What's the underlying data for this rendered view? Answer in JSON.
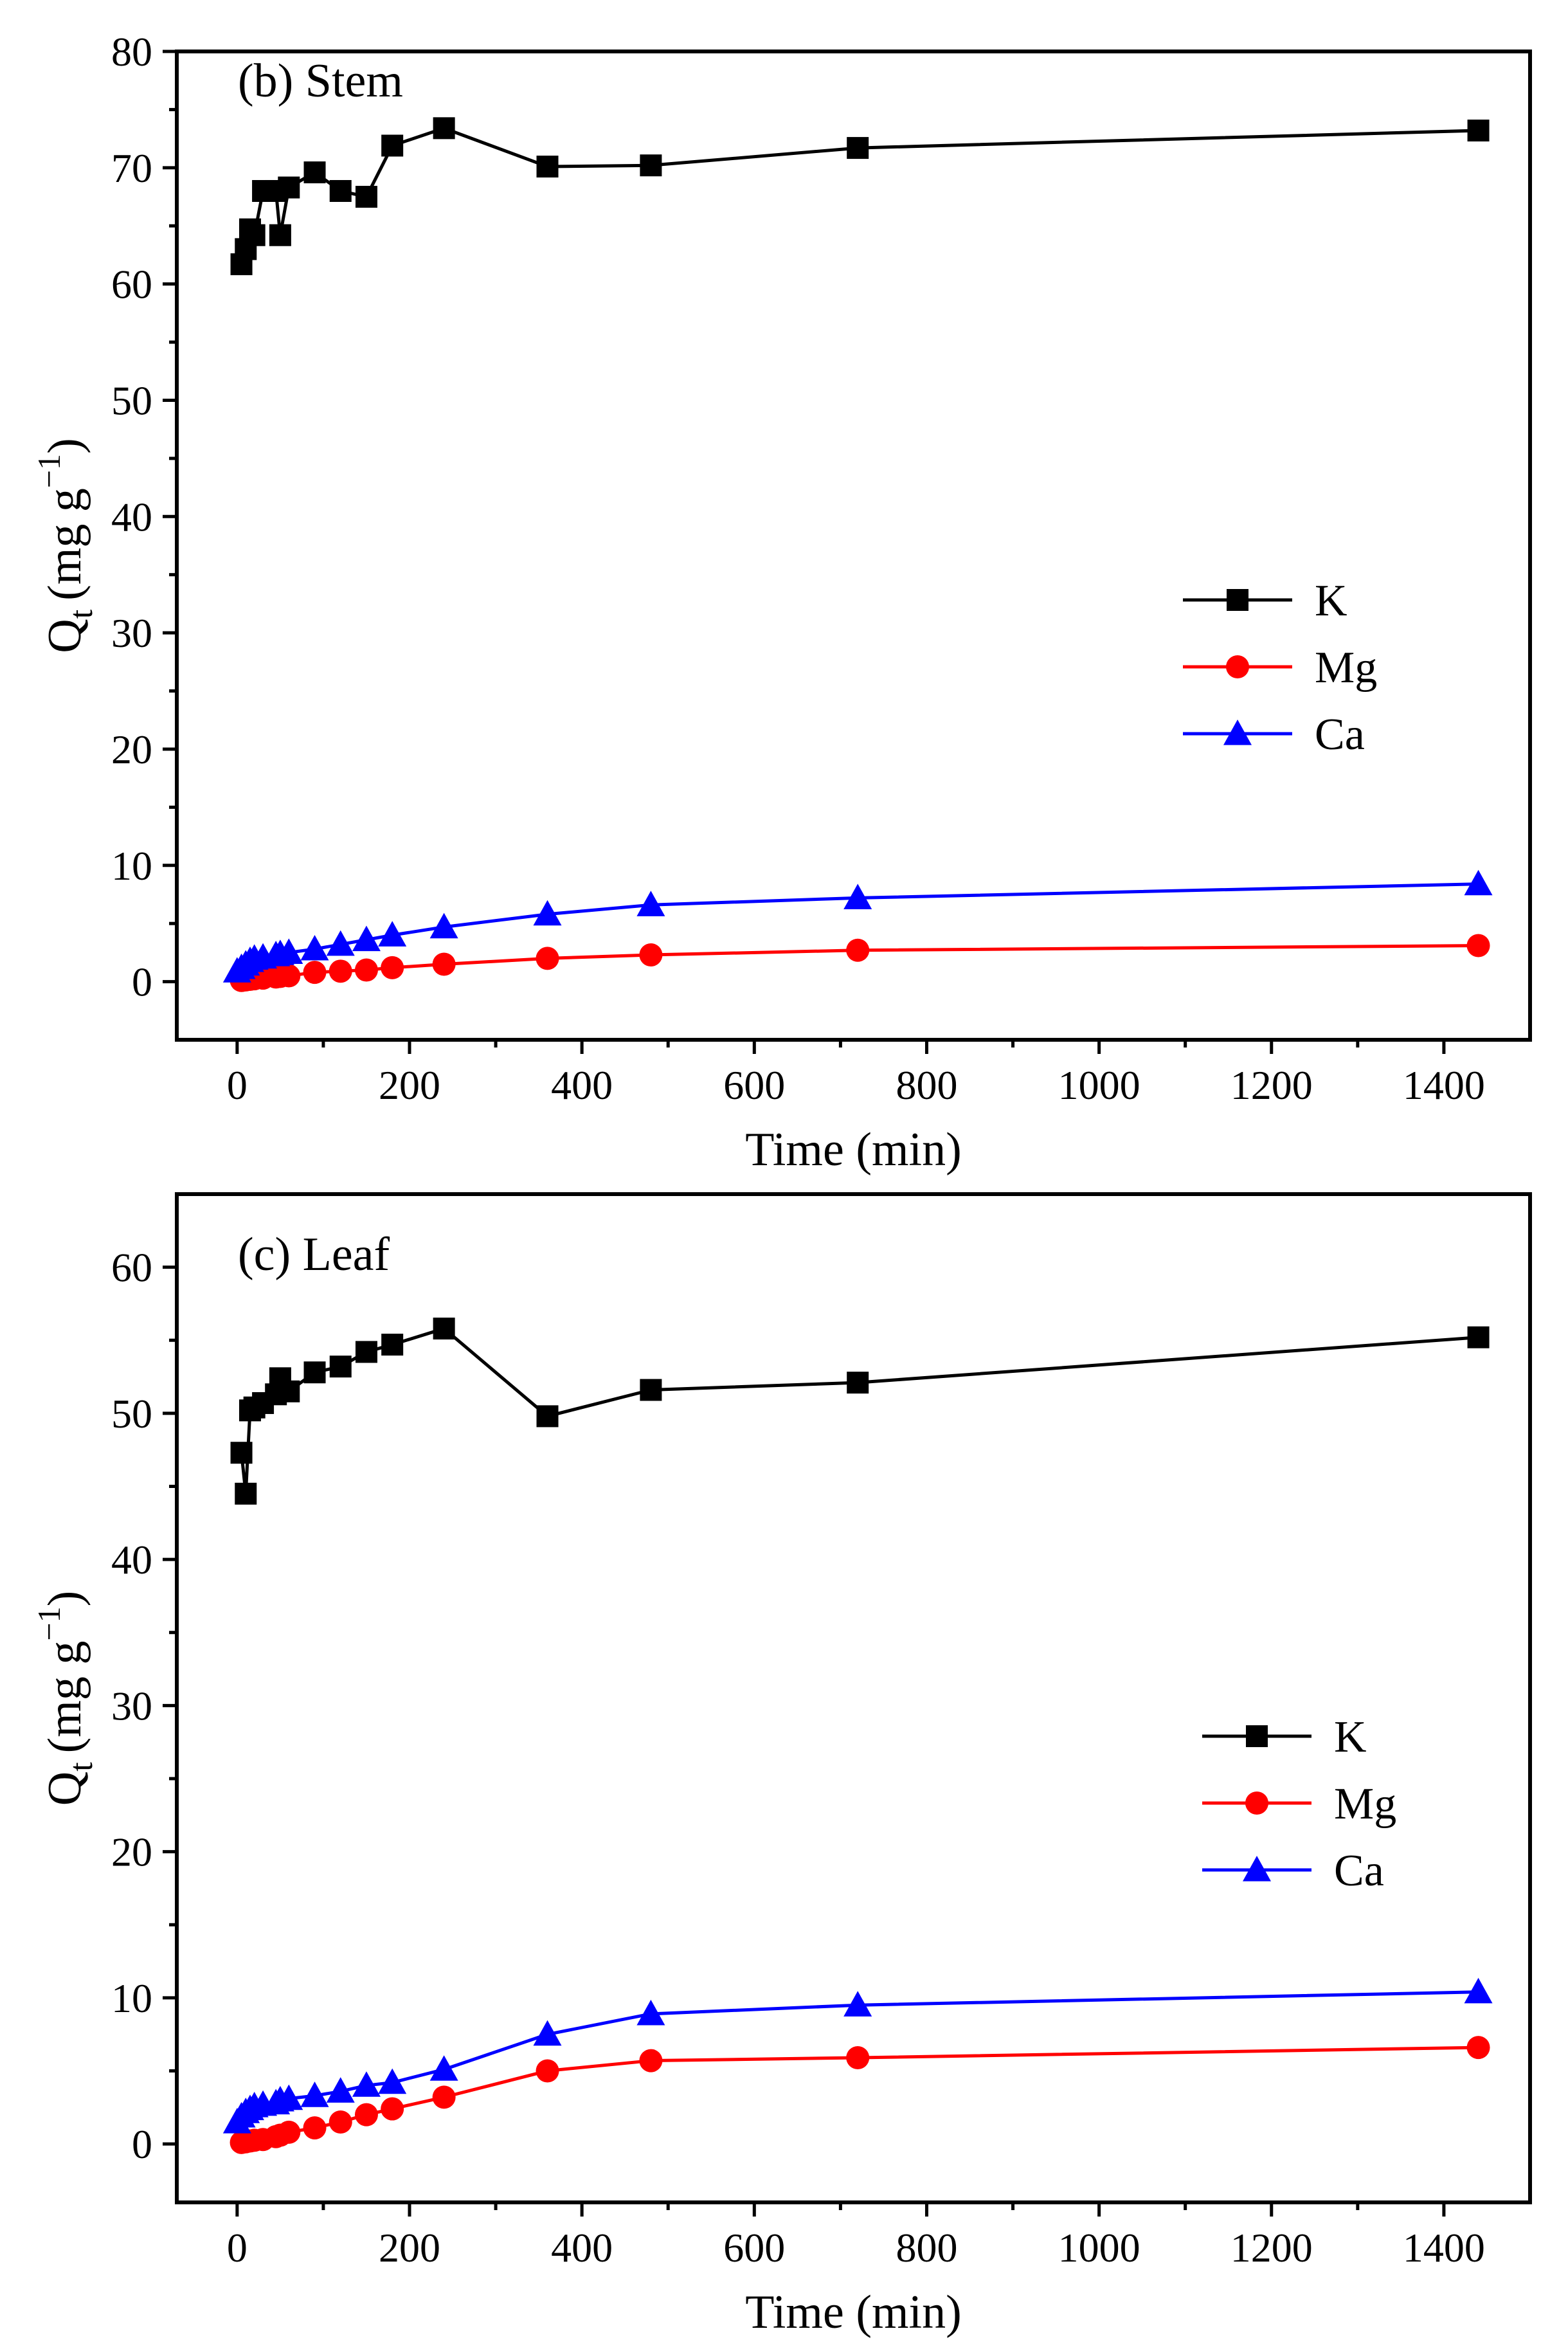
{
  "chart_data": [
    {
      "type": "line",
      "title": "(b) Stem",
      "xlabel": "Time (min)",
      "ylabel": "Q",
      "ylabel_sub": "t",
      "ylabel_unit": "(mg g",
      "ylabel_sup": "−1",
      "ylabel_close": ")",
      "xlim": [
        -70,
        1500
      ],
      "ylim": [
        -5,
        80
      ],
      "xticks": [
        0,
        200,
        400,
        600,
        800,
        1000,
        1200,
        1400
      ],
      "yticks": [
        0,
        10,
        20,
        30,
        40,
        50,
        60,
        70,
        80
      ],
      "legend_position": "center-right",
      "series": [
        {
          "name": "K",
          "color": "#000000",
          "marker": "square",
          "x": [
            5,
            10,
            15,
            20,
            30,
            45,
            50,
            60,
            90,
            120,
            150,
            180,
            240,
            360,
            480,
            720,
            1440
          ],
          "y": [
            61.7,
            63.0,
            64.7,
            64.2,
            68.0,
            68.0,
            64.2,
            68.3,
            69.6,
            68.0,
            67.5,
            71.9,
            73.4,
            70.1,
            70.2,
            71.7,
            73.2
          ]
        },
        {
          "name": "Mg",
          "color": "#ff0000",
          "marker": "circle",
          "x": [
            5,
            10,
            15,
            20,
            30,
            45,
            50,
            60,
            90,
            120,
            150,
            180,
            240,
            360,
            480,
            720,
            1440
          ],
          "y": [
            0.1,
            0.15,
            0.2,
            0.25,
            0.3,
            0.4,
            0.45,
            0.5,
            0.8,
            0.9,
            1.0,
            1.2,
            1.5,
            2.0,
            2.3,
            2.7,
            3.1
          ]
        },
        {
          "name": "Ca",
          "color": "#0000ff",
          "marker": "triangle",
          "x": [
            0,
            5,
            10,
            15,
            20,
            30,
            45,
            50,
            60,
            90,
            120,
            150,
            180,
            240,
            360,
            480,
            720,
            1440
          ],
          "y": [
            0.9,
            1.2,
            1.5,
            1.8,
            2.0,
            2.1,
            2.3,
            2.4,
            2.5,
            2.8,
            3.2,
            3.6,
            4.0,
            4.7,
            5.8,
            6.6,
            7.2,
            8.4
          ]
        }
      ]
    },
    {
      "type": "line",
      "title": "(c) Leaf",
      "xlabel": "Time (min)",
      "ylabel": "Q",
      "ylabel_sub": "t",
      "ylabel_unit": "(mg g",
      "ylabel_sup": "−1",
      "ylabel_close": ")",
      "xlim": [
        -70,
        1500
      ],
      "ylim": [
        -4,
        65
      ],
      "xticks": [
        0,
        200,
        400,
        600,
        800,
        1000,
        1200,
        1400
      ],
      "yticks": [
        0,
        10,
        20,
        30,
        40,
        50,
        60
      ],
      "legend_position": "center-right",
      "series": [
        {
          "name": "K",
          "color": "#000000",
          "marker": "square",
          "x": [
            5,
            10,
            15,
            20,
            30,
            45,
            50,
            60,
            90,
            120,
            150,
            180,
            240,
            360,
            480,
            720,
            1440
          ],
          "y": [
            47.3,
            44.5,
            50.2,
            50.4,
            50.7,
            51.3,
            52.4,
            51.5,
            52.8,
            53.2,
            54.2,
            54.7,
            55.8,
            49.8,
            51.6,
            52.1,
            55.2
          ]
        },
        {
          "name": "Mg",
          "color": "#ff0000",
          "marker": "circle",
          "x": [
            5,
            10,
            15,
            20,
            30,
            45,
            50,
            60,
            90,
            120,
            150,
            180,
            240,
            360,
            480,
            720,
            1440
          ],
          "y": [
            0.1,
            0.15,
            0.2,
            0.25,
            0.3,
            0.5,
            0.6,
            0.8,
            1.1,
            1.5,
            2.0,
            2.4,
            3.2,
            5.0,
            5.7,
            5.9,
            6.6
          ]
        },
        {
          "name": "Ca",
          "color": "#0000ff",
          "marker": "triangle",
          "x": [
            0,
            5,
            10,
            15,
            20,
            30,
            45,
            50,
            60,
            90,
            120,
            150,
            180,
            240,
            360,
            480,
            720,
            1440
          ],
          "y": [
            1.5,
            1.9,
            2.2,
            2.4,
            2.6,
            2.7,
            2.8,
            3.0,
            3.1,
            3.3,
            3.6,
            4.0,
            4.2,
            5.1,
            7.5,
            8.9,
            9.5,
            10.4
          ]
        }
      ]
    }
  ]
}
